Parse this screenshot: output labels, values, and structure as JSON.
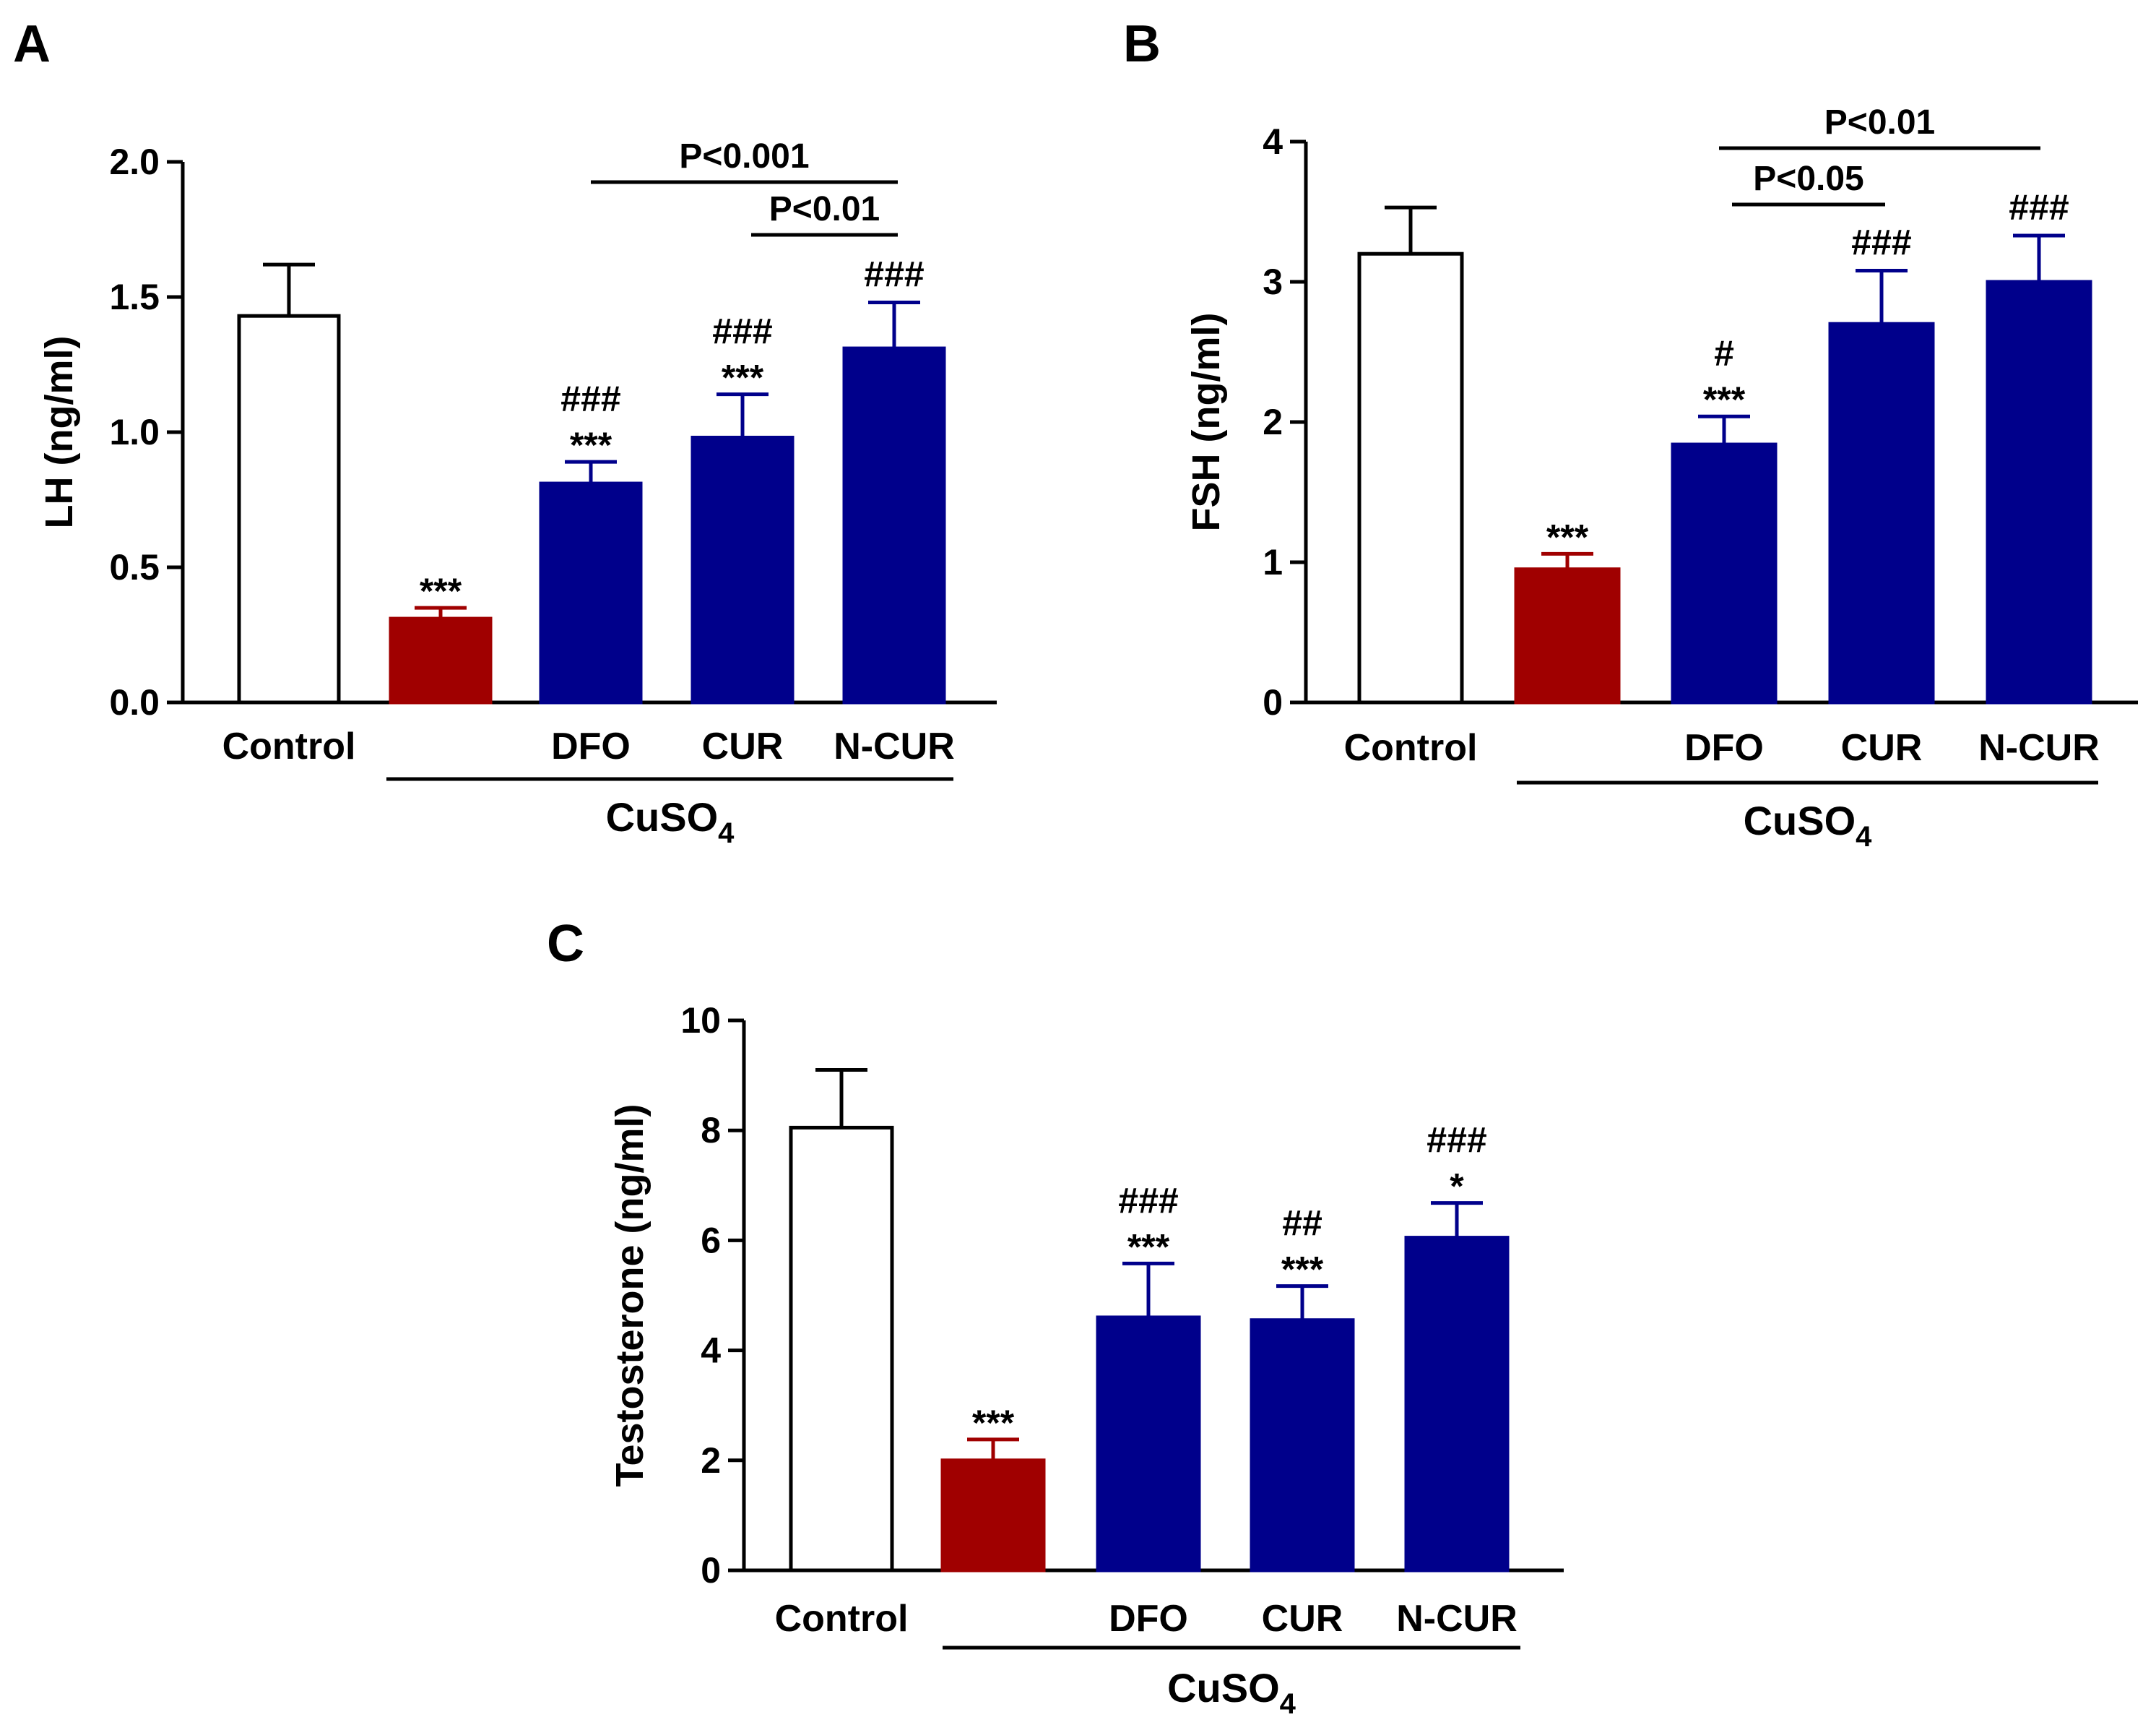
{
  "figure": {
    "group_label": "CuSO",
    "group_subscript": "4"
  },
  "colors": {
    "control": "#ffffff",
    "cuso4": "#a00000",
    "treatment": "#00008b",
    "outline": "#000000"
  },
  "chart_data": [
    {
      "panel": "A",
      "type": "bar",
      "ylabel": "LH (ng/ml)",
      "ylim": [
        0,
        2.0
      ],
      "yticks": [
        "0.0",
        "0.5",
        "1.0",
        "1.5",
        "2.0"
      ],
      "categories": [
        "Control",
        "",
        "DFO",
        "CUR",
        "N-CUR"
      ],
      "values": [
        1.43,
        0.31,
        0.81,
        0.98,
        1.31
      ],
      "errors": [
        0.19,
        0.04,
        0.08,
        0.16,
        0.17
      ],
      "bar_groups": [
        "control",
        "cuso4",
        "treatment",
        "treatment",
        "treatment"
      ],
      "significance": [
        [],
        [
          "***"
        ],
        [
          "***",
          "###"
        ],
        [
          "***",
          "###"
        ],
        [
          "###"
        ]
      ],
      "comparisons": [
        {
          "from": 2,
          "to": 4,
          "label": "P<0.001",
          "level": 2
        },
        {
          "from": 3,
          "to": 4,
          "label": "P<0.01",
          "level": 1
        }
      ]
    },
    {
      "panel": "B",
      "type": "bar",
      "ylabel": "FSH (ng/ml)",
      "ylim": [
        0,
        4
      ],
      "yticks": [
        "0",
        "1",
        "2",
        "3",
        "4"
      ],
      "categories": [
        "Control",
        "",
        "DFO",
        "CUR",
        "N-CUR"
      ],
      "values": [
        3.2,
        0.95,
        1.84,
        2.7,
        3.0
      ],
      "errors": [
        0.33,
        0.11,
        0.2,
        0.38,
        0.33
      ],
      "bar_groups": [
        "control",
        "cuso4",
        "treatment",
        "treatment",
        "treatment"
      ],
      "significance": [
        [],
        [
          "***"
        ],
        [
          "***",
          "#"
        ],
        [
          "###"
        ],
        [
          "###"
        ]
      ],
      "comparisons": [
        {
          "from": 2,
          "to": 4,
          "label": "P<0.01",
          "level": 2
        },
        {
          "from": 2,
          "to": 3,
          "label": "P<0.05",
          "level": 1
        }
      ]
    },
    {
      "panel": "C",
      "type": "bar",
      "ylabel": "Testosterone (ng/ml)",
      "ylim": [
        0,
        10
      ],
      "yticks": [
        "0",
        "2",
        "4",
        "6",
        "8",
        "10"
      ],
      "categories": [
        "Control",
        "",
        "DFO",
        "CUR",
        "N-CUR"
      ],
      "values": [
        8.05,
        2.0,
        4.6,
        4.55,
        6.05
      ],
      "errors": [
        1.05,
        0.38,
        0.98,
        0.62,
        0.63
      ],
      "bar_groups": [
        "control",
        "cuso4",
        "treatment",
        "treatment",
        "treatment"
      ],
      "significance": [
        [],
        [
          "***"
        ],
        [
          "***",
          "###"
        ],
        [
          "***",
          "##"
        ],
        [
          "*",
          "###"
        ]
      ],
      "comparisons": []
    }
  ]
}
